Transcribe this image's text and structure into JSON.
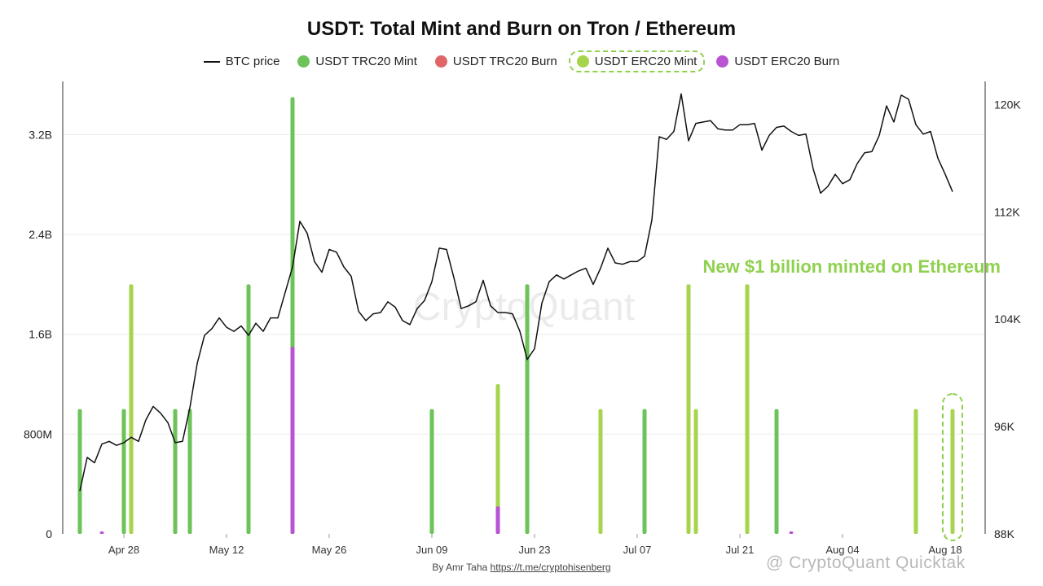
{
  "title": "USDT: Total Mint and Burn on Tron / Ethereum",
  "footer": {
    "author": "By Amr Taha",
    "link": "https://t.me/cryptohisenberg"
  },
  "watermark_center": "CryptoQuant",
  "watermark_corner": "@ CryptoQuant Quicktak",
  "colors": {
    "btc": "#111111",
    "trc_mint": "#6cc35a",
    "trc_burn": "#e06666",
    "erc_mint": "#a6d54d",
    "erc_burn": "#b854d4",
    "annotation": "#8fd14f"
  },
  "chart_data": {
    "type": "bar",
    "title": "USDT: Total Mint and Burn on Tron / Ethereum",
    "legend": [
      "BTC price",
      "USDT TRC20 Mint",
      "USDT TRC20 Burn",
      "USDT ERC20 Mint",
      "USDT ERC20 Burn"
    ],
    "legend_highlight": "USDT ERC20 Mint",
    "legend_position": "top",
    "x_range": [
      "2025-04-22",
      "2025-08-22"
    ],
    "x_ticks": [
      "Apr 28",
      "May 12",
      "May 26",
      "Jun 09",
      "Jun 23",
      "Jul 07",
      "Jul 21",
      "Aug 04",
      "Aug 18"
    ],
    "x_tick_dates": [
      "2025-04-28",
      "2025-05-12",
      "2025-05-26",
      "2025-06-09",
      "2025-06-23",
      "2025-07-07",
      "2025-07-21",
      "2025-08-04",
      "2025-08-18"
    ],
    "y_left": {
      "range": [
        0,
        3.6
      ],
      "unit": "B",
      "ticks": [
        "0",
        "800M",
        "1.6B",
        "2.4B",
        "3.2B"
      ],
      "tick_values": [
        0,
        0.8,
        1.6,
        2.4,
        3.2
      ]
    },
    "y_right": {
      "range": [
        88000,
        121000
      ],
      "ticks": [
        "88K",
        "96K",
        "104K",
        "112K",
        "120K"
      ],
      "tick_values": [
        88000,
        96000,
        104000,
        112000,
        120000
      ]
    },
    "grid": "horizontal",
    "bars": [
      {
        "date": "2025-04-22",
        "series": "USDT TRC20 Mint",
        "value": 1.0
      },
      {
        "date": "2025-04-28",
        "series": "USDT TRC20 Mint",
        "value": 1.0
      },
      {
        "date": "2025-04-29",
        "series": "USDT ERC20 Mint",
        "value": 2.0
      },
      {
        "date": "2025-05-05",
        "series": "USDT TRC20 Mint",
        "value": 1.0
      },
      {
        "date": "2025-05-07",
        "series": "USDT TRC20 Mint",
        "value": 1.0
      },
      {
        "date": "2025-05-15",
        "series": "USDT TRC20 Mint",
        "value": 2.0
      },
      {
        "date": "2025-05-21",
        "series": "USDT TRC20 Mint",
        "value": 3.5
      },
      {
        "date": "2025-06-09",
        "series": "USDT TRC20 Mint",
        "value": 1.0
      },
      {
        "date": "2025-06-18",
        "series": "USDT ERC20 Mint",
        "value": 1.2
      },
      {
        "date": "2025-06-22",
        "series": "USDT TRC20 Mint",
        "value": 2.0
      },
      {
        "date": "2025-07-02",
        "series": "USDT ERC20 Mint",
        "value": 1.0
      },
      {
        "date": "2025-07-08",
        "series": "USDT TRC20 Mint",
        "value": 1.0
      },
      {
        "date": "2025-07-14",
        "series": "USDT ERC20 Mint",
        "value": 2.0
      },
      {
        "date": "2025-07-15",
        "series": "USDT ERC20 Mint",
        "value": 1.0
      },
      {
        "date": "2025-07-22",
        "series": "USDT ERC20 Mint",
        "value": 2.0
      },
      {
        "date": "2025-07-26",
        "series": "USDT TRC20 Mint",
        "value": 1.0
      },
      {
        "date": "2025-08-14",
        "series": "USDT ERC20 Mint",
        "value": 1.0
      },
      {
        "date": "2025-08-19",
        "series": "USDT ERC20 Mint",
        "value": 1.0
      }
    ],
    "burns": [
      {
        "date": "2025-04-25",
        "series": "USDT ERC20 Burn",
        "value": 0.02
      },
      {
        "date": "2025-05-21",
        "series": "USDT ERC20 Burn",
        "value": 1.5
      },
      {
        "date": "2025-06-18",
        "series": "USDT ERC20 Burn",
        "value": 0.22
      },
      {
        "date": "2025-07-28",
        "series": "USDT ERC20 Burn",
        "value": 0.02
      }
    ],
    "btc_price": [
      [
        "2025-04-22",
        91200
      ],
      [
        "2025-04-23",
        93700
      ],
      [
        "2025-04-24",
        93300
      ],
      [
        "2025-04-25",
        94700
      ],
      [
        "2025-04-26",
        94900
      ],
      [
        "2025-04-27",
        94600
      ],
      [
        "2025-04-28",
        94800
      ],
      [
        "2025-04-29",
        95200
      ],
      [
        "2025-04-30",
        94900
      ],
      [
        "2025-05-01",
        96500
      ],
      [
        "2025-05-02",
        97500
      ],
      [
        "2025-05-03",
        97000
      ],
      [
        "2025-05-04",
        96300
      ],
      [
        "2025-05-05",
        94800
      ],
      [
        "2025-05-06",
        94900
      ],
      [
        "2025-05-07",
        97400
      ],
      [
        "2025-05-08",
        100700
      ],
      [
        "2025-05-09",
        102800
      ],
      [
        "2025-05-10",
        103300
      ],
      [
        "2025-05-11",
        104100
      ],
      [
        "2025-05-12",
        103400
      ],
      [
        "2025-05-13",
        103100
      ],
      [
        "2025-05-14",
        103500
      ],
      [
        "2025-05-15",
        102800
      ],
      [
        "2025-05-16",
        103700
      ],
      [
        "2025-05-17",
        103100
      ],
      [
        "2025-05-18",
        104100
      ],
      [
        "2025-05-19",
        104100
      ],
      [
        "2025-05-20",
        106000
      ],
      [
        "2025-05-21",
        107900
      ],
      [
        "2025-05-22",
        111300
      ],
      [
        "2025-05-23",
        110400
      ],
      [
        "2025-05-24",
        108300
      ],
      [
        "2025-05-25",
        107500
      ],
      [
        "2025-05-26",
        109200
      ],
      [
        "2025-05-27",
        109000
      ],
      [
        "2025-05-28",
        107900
      ],
      [
        "2025-05-29",
        107200
      ],
      [
        "2025-05-30",
        104600
      ],
      [
        "2025-05-31",
        103900
      ],
      [
        "2025-06-01",
        104400
      ],
      [
        "2025-06-02",
        104500
      ],
      [
        "2025-06-03",
        105300
      ],
      [
        "2025-06-04",
        104900
      ],
      [
        "2025-06-05",
        103900
      ],
      [
        "2025-06-06",
        103600
      ],
      [
        "2025-06-07",
        104800
      ],
      [
        "2025-06-08",
        105400
      ],
      [
        "2025-06-09",
        106800
      ],
      [
        "2025-06-10",
        109300
      ],
      [
        "2025-06-11",
        109200
      ],
      [
        "2025-06-12",
        107100
      ],
      [
        "2025-06-13",
        104800
      ],
      [
        "2025-06-14",
        105000
      ],
      [
        "2025-06-15",
        105300
      ],
      [
        "2025-06-16",
        106900
      ],
      [
        "2025-06-17",
        105000
      ],
      [
        "2025-06-18",
        104500
      ],
      [
        "2025-06-19",
        104500
      ],
      [
        "2025-06-20",
        104400
      ],
      [
        "2025-06-21",
        103100
      ],
      [
        "2025-06-22",
        101000
      ],
      [
        "2025-06-23",
        101800
      ],
      [
        "2025-06-24",
        105200
      ],
      [
        "2025-06-25",
        106800
      ],
      [
        "2025-06-26",
        107300
      ],
      [
        "2025-06-27",
        107000
      ],
      [
        "2025-06-28",
        107300
      ],
      [
        "2025-06-29",
        107600
      ],
      [
        "2025-06-30",
        107800
      ],
      [
        "2025-07-01",
        106600
      ],
      [
        "2025-07-02",
        107800
      ],
      [
        "2025-07-03",
        109300
      ],
      [
        "2025-07-04",
        108200
      ],
      [
        "2025-07-05",
        108100
      ],
      [
        "2025-07-06",
        108300
      ],
      [
        "2025-07-07",
        108300
      ],
      [
        "2025-07-08",
        108700
      ],
      [
        "2025-07-09",
        111400
      ],
      [
        "2025-07-10",
        117600
      ],
      [
        "2025-07-11",
        117400
      ],
      [
        "2025-07-12",
        118000
      ],
      [
        "2025-07-13",
        120800
      ],
      [
        "2025-07-14",
        117300
      ],
      [
        "2025-07-15",
        118600
      ],
      [
        "2025-07-16",
        118700
      ],
      [
        "2025-07-17",
        118800
      ],
      [
        "2025-07-18",
        118200
      ],
      [
        "2025-07-19",
        118100
      ],
      [
        "2025-07-20",
        118100
      ],
      [
        "2025-07-21",
        118500
      ],
      [
        "2025-07-22",
        118500
      ],
      [
        "2025-07-23",
        118600
      ],
      [
        "2025-07-24",
        116600
      ],
      [
        "2025-07-25",
        117700
      ],
      [
        "2025-07-26",
        118300
      ],
      [
        "2025-07-27",
        118400
      ],
      [
        "2025-07-28",
        118000
      ],
      [
        "2025-07-29",
        117700
      ],
      [
        "2025-07-30",
        117800
      ],
      [
        "2025-07-31",
        115200
      ],
      [
        "2025-08-01",
        113400
      ],
      [
        "2025-08-02",
        113900
      ],
      [
        "2025-08-03",
        114800
      ],
      [
        "2025-08-04",
        114100
      ],
      [
        "2025-08-05",
        114400
      ],
      [
        "2025-08-06",
        115600
      ],
      [
        "2025-08-07",
        116400
      ],
      [
        "2025-08-08",
        116500
      ],
      [
        "2025-08-09",
        117700
      ],
      [
        "2025-08-10",
        119900
      ],
      [
        "2025-08-11",
        118700
      ],
      [
        "2025-08-12",
        120700
      ],
      [
        "2025-08-13",
        120400
      ],
      [
        "2025-08-14",
        118500
      ],
      [
        "2025-08-15",
        117800
      ],
      [
        "2025-08-16",
        118000
      ],
      [
        "2025-08-17",
        116000
      ],
      [
        "2025-08-18",
        114800
      ],
      [
        "2025-08-19",
        113500
      ]
    ],
    "annotation": "New $1 billion minted on Ethereum",
    "annotation_target": "2025-08-19"
  }
}
